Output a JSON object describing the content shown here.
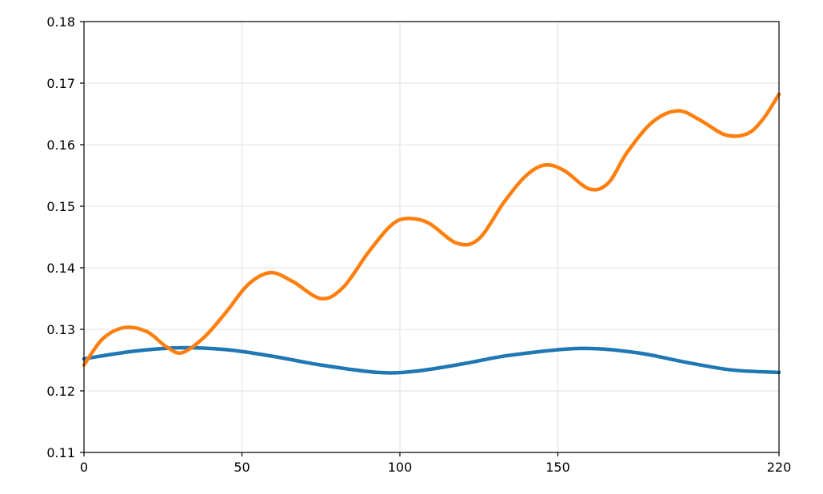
{
  "chart_data": {
    "type": "line",
    "title": "",
    "xlabel": "",
    "ylabel": "",
    "xlim": [
      0,
      220
    ],
    "ylim": [
      0.11,
      0.18
    ],
    "x_ticks": [
      0,
      50,
      100,
      150,
      220
    ],
    "x_tick_labels": [
      "0",
      "50",
      "100",
      "150",
      "220"
    ],
    "y_ticks": [
      0.11,
      0.12,
      0.13,
      0.14,
      0.15,
      0.16,
      0.17,
      0.18
    ],
    "y_tick_labels": [
      "0.11",
      "0.12",
      "0.13",
      "0.14",
      "0.15",
      "0.16",
      "0.17",
      "0.18"
    ],
    "grid": true,
    "legend": "none",
    "series": [
      {
        "color": "#1f77b4",
        "x": [
          0,
          15,
          30,
          45,
          60,
          75,
          93,
          105,
          120,
          135,
          157,
          175,
          190,
          205,
          220
        ],
        "values": [
          0.1252,
          0.1264,
          0.127,
          0.1267,
          0.1256,
          0.1242,
          0.123,
          0.1232,
          0.1244,
          0.1258,
          0.1269,
          0.1262,
          0.1247,
          0.1234,
          0.123
        ]
      },
      {
        "color": "#ff7f0e",
        "x": [
          0,
          6,
          13,
          20,
          26,
          31,
          38,
          45,
          52,
          59,
          66,
          75,
          82,
          90,
          97,
          102,
          109,
          118,
          125,
          133,
          140,
          146,
          152,
          160,
          166,
          172,
          180,
          188,
          195,
          203,
          210,
          215,
          220
        ],
        "values": [
          0.1242,
          0.1285,
          0.1303,
          0.1296,
          0.1272,
          0.1262,
          0.1287,
          0.1328,
          0.1373,
          0.1392,
          0.1378,
          0.135,
          0.1368,
          0.1425,
          0.1468,
          0.148,
          0.1473,
          0.144,
          0.1447,
          0.1507,
          0.155,
          0.1567,
          0.1558,
          0.1528,
          0.1538,
          0.1588,
          0.1637,
          0.1655,
          0.164,
          0.1616,
          0.1618,
          0.1642,
          0.1682
        ]
      }
    ]
  }
}
